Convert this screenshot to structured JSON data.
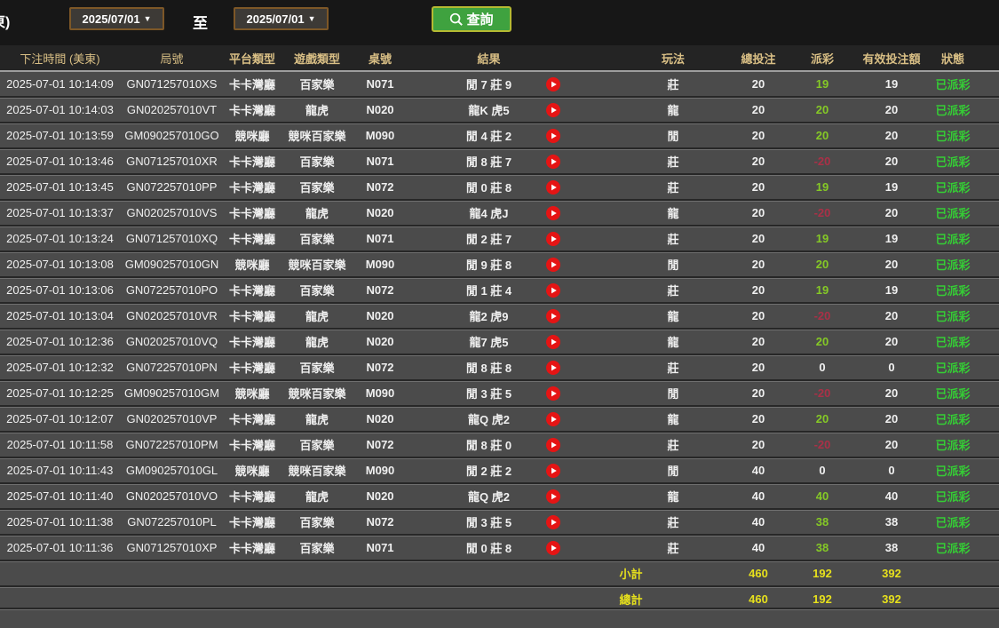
{
  "toolbar": {
    "clipped_label": "東)",
    "date_from": "2025/07/01",
    "date_to": "2025/07/01",
    "to_label": "至",
    "dropdown_arrow": "▼",
    "search_label": "查詢"
  },
  "table": {
    "columns": [
      "下注時間 (美東)",
      "局號",
      "平台類型",
      "遊戲類型",
      "桌號",
      "結果",
      "",
      "玩法",
      "總投注",
      "派彩",
      "有效投注額",
      "狀態"
    ],
    "rows": [
      {
        "time": "2025-07-01 10:14:09",
        "round_id": "GN071257010XS",
        "platform": "卡卡灣廳",
        "game": "百家樂",
        "table_no": "N071",
        "result": "閒 7 莊 9",
        "play": "莊",
        "total_bet": "20",
        "payout": "19",
        "valid_bet": "19",
        "status": "已派彩"
      },
      {
        "time": "2025-07-01 10:14:03",
        "round_id": "GN020257010VT",
        "platform": "卡卡灣廳",
        "game": "龍虎",
        "table_no": "N020",
        "result": "龍K 虎5",
        "play": "龍",
        "total_bet": "20",
        "payout": "20",
        "valid_bet": "20",
        "status": "已派彩"
      },
      {
        "time": "2025-07-01 10:13:59",
        "round_id": "GM090257010GO",
        "platform": "競咪廳",
        "game": "競咪百家樂",
        "table_no": "M090",
        "result": "閒 4 莊 2",
        "play": "閒",
        "total_bet": "20",
        "payout": "20",
        "valid_bet": "20",
        "status": "已派彩"
      },
      {
        "time": "2025-07-01 10:13:46",
        "round_id": "GN071257010XR",
        "platform": "卡卡灣廳",
        "game": "百家樂",
        "table_no": "N071",
        "result": "閒 8 莊 7",
        "play": "莊",
        "total_bet": "20",
        "payout": "-20",
        "valid_bet": "20",
        "status": "已派彩"
      },
      {
        "time": "2025-07-01 10:13:45",
        "round_id": "GN072257010PP",
        "platform": "卡卡灣廳",
        "game": "百家樂",
        "table_no": "N072",
        "result": "閒 0 莊 8",
        "play": "莊",
        "total_bet": "20",
        "payout": "19",
        "valid_bet": "19",
        "status": "已派彩"
      },
      {
        "time": "2025-07-01 10:13:37",
        "round_id": "GN020257010VS",
        "platform": "卡卡灣廳",
        "game": "龍虎",
        "table_no": "N020",
        "result": "龍4 虎J",
        "play": "龍",
        "total_bet": "20",
        "payout": "-20",
        "valid_bet": "20",
        "status": "已派彩"
      },
      {
        "time": "2025-07-01 10:13:24",
        "round_id": "GN071257010XQ",
        "platform": "卡卡灣廳",
        "game": "百家樂",
        "table_no": "N071",
        "result": "閒 2 莊 7",
        "play": "莊",
        "total_bet": "20",
        "payout": "19",
        "valid_bet": "19",
        "status": "已派彩"
      },
      {
        "time": "2025-07-01 10:13:08",
        "round_id": "GM090257010GN",
        "platform": "競咪廳",
        "game": "競咪百家樂",
        "table_no": "M090",
        "result": "閒 9 莊 8",
        "play": "閒",
        "total_bet": "20",
        "payout": "20",
        "valid_bet": "20",
        "status": "已派彩"
      },
      {
        "time": "2025-07-01 10:13:06",
        "round_id": "GN072257010PO",
        "platform": "卡卡灣廳",
        "game": "百家樂",
        "table_no": "N072",
        "result": "閒 1 莊 4",
        "play": "莊",
        "total_bet": "20",
        "payout": "19",
        "valid_bet": "19",
        "status": "已派彩"
      },
      {
        "time": "2025-07-01 10:13:04",
        "round_id": "GN020257010VR",
        "platform": "卡卡灣廳",
        "game": "龍虎",
        "table_no": "N020",
        "result": "龍2 虎9",
        "play": "龍",
        "total_bet": "20",
        "payout": "-20",
        "valid_bet": "20",
        "status": "已派彩"
      },
      {
        "time": "2025-07-01 10:12:36",
        "round_id": "GN020257010VQ",
        "platform": "卡卡灣廳",
        "game": "龍虎",
        "table_no": "N020",
        "result": "龍7 虎5",
        "play": "龍",
        "total_bet": "20",
        "payout": "20",
        "valid_bet": "20",
        "status": "已派彩"
      },
      {
        "time": "2025-07-01 10:12:32",
        "round_id": "GN072257010PN",
        "platform": "卡卡灣廳",
        "game": "百家樂",
        "table_no": "N072",
        "result": "閒 8 莊 8",
        "play": "莊",
        "total_bet": "20",
        "payout": "0",
        "valid_bet": "0",
        "status": "已派彩"
      },
      {
        "time": "2025-07-01 10:12:25",
        "round_id": "GM090257010GM",
        "platform": "競咪廳",
        "game": "競咪百家樂",
        "table_no": "M090",
        "result": "閒 3 莊 5",
        "play": "閒",
        "total_bet": "20",
        "payout": "-20",
        "valid_bet": "20",
        "status": "已派彩"
      },
      {
        "time": "2025-07-01 10:12:07",
        "round_id": "GN020257010VP",
        "platform": "卡卡灣廳",
        "game": "龍虎",
        "table_no": "N020",
        "result": "龍Q 虎2",
        "play": "龍",
        "total_bet": "20",
        "payout": "20",
        "valid_bet": "20",
        "status": "已派彩"
      },
      {
        "time": "2025-07-01 10:11:58",
        "round_id": "GN072257010PM",
        "platform": "卡卡灣廳",
        "game": "百家樂",
        "table_no": "N072",
        "result": "閒 8 莊 0",
        "play": "莊",
        "total_bet": "20",
        "payout": "-20",
        "valid_bet": "20",
        "status": "已派彩"
      },
      {
        "time": "2025-07-01 10:11:43",
        "round_id": "GM090257010GL",
        "platform": "競咪廳",
        "game": "競咪百家樂",
        "table_no": "M090",
        "result": "閒 2 莊 2",
        "play": "閒",
        "total_bet": "40",
        "payout": "0",
        "valid_bet": "0",
        "status": "已派彩"
      },
      {
        "time": "2025-07-01 10:11:40",
        "round_id": "GN020257010VO",
        "platform": "卡卡灣廳",
        "game": "龍虎",
        "table_no": "N020",
        "result": "龍Q 虎2",
        "play": "龍",
        "total_bet": "40",
        "payout": "40",
        "valid_bet": "40",
        "status": "已派彩"
      },
      {
        "time": "2025-07-01 10:11:38",
        "round_id": "GN072257010PL",
        "platform": "卡卡灣廳",
        "game": "百家樂",
        "table_no": "N072",
        "result": "閒 3 莊 5",
        "play": "莊",
        "total_bet": "40",
        "payout": "38",
        "valid_bet": "38",
        "status": "已派彩"
      },
      {
        "time": "2025-07-01 10:11:36",
        "round_id": "GN071257010XP",
        "platform": "卡卡灣廳",
        "game": "百家樂",
        "table_no": "N071",
        "result": "閒 0 莊 8",
        "play": "莊",
        "total_bet": "40",
        "payout": "38",
        "valid_bet": "38",
        "status": "已派彩"
      }
    ],
    "subtotal": {
      "label": "小計",
      "total_bet": "460",
      "payout": "192",
      "valid_bet": "392"
    },
    "total": {
      "label": "總計",
      "total_bet": "460",
      "payout": "192",
      "valid_bet": "392"
    }
  },
  "icons": {
    "search": "magnifier-icon",
    "play": "play-icon",
    "dropdown": "chevron-down-icon"
  },
  "colors": {
    "payout_positive": "#85c926",
    "payout_negative": "#aa3047",
    "status_green": "#35cc35",
    "total_yellow": "#e7e11c",
    "header_text": "#d9bf85",
    "row_bg": "#4b4b4b",
    "topbar_bg": "#171717",
    "search_button_bg": "#3fa23f",
    "search_button_border": "#b5b932",
    "datebox_border": "#7d5727",
    "play_button_red": "#e51414"
  }
}
